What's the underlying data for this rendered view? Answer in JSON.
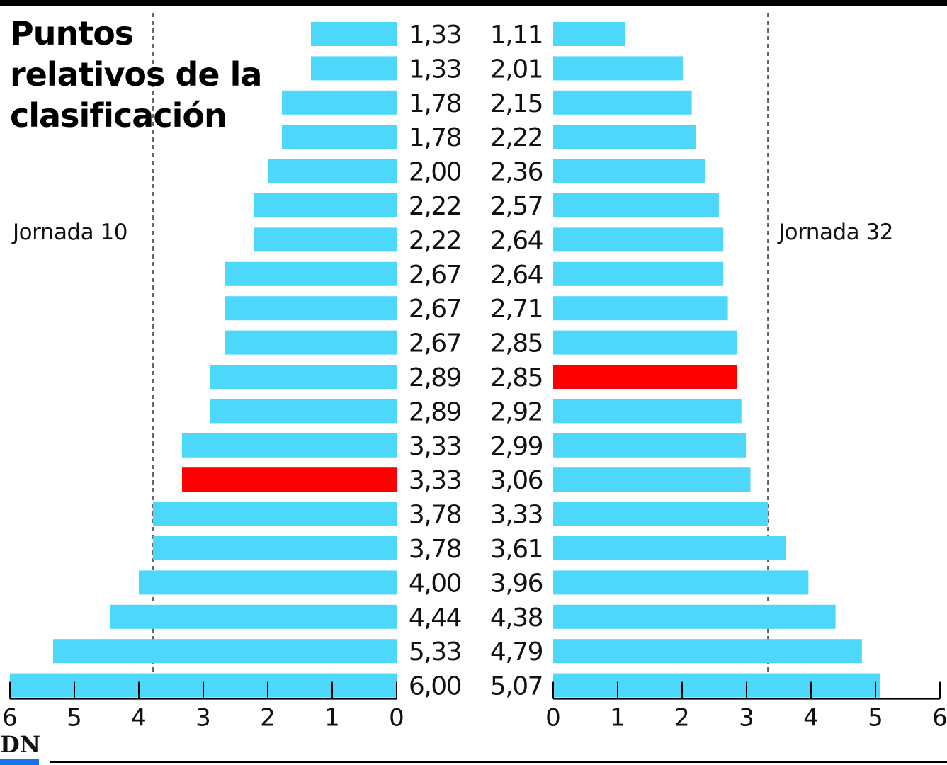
{
  "title": "Puntos relativos de la clasificación",
  "colors": {
    "bar": "#4dd8fb",
    "highlight": "#fe0000",
    "axis": "#000000",
    "text": "#111111",
    "brand": "#1a73e8"
  },
  "brand": {
    "logo": "DN"
  },
  "chart_data": [
    {
      "type": "bar",
      "orientation": "horizontal",
      "direction": "right-to-left",
      "series_label": "Jornada 10",
      "values": [
        1.33,
        1.33,
        1.78,
        1.78,
        2.0,
        2.22,
        2.22,
        2.67,
        2.67,
        2.67,
        2.89,
        2.89,
        3.33,
        3.33,
        3.78,
        3.78,
        4.0,
        4.44,
        5.33,
        6.0
      ],
      "value_labels": [
        "1,33",
        "1,33",
        "1,78",
        "1,78",
        "2,00",
        "2,22",
        "2,22",
        "2,67",
        "2,67",
        "2,67",
        "2,89",
        "2,89",
        "3,33",
        "3,33",
        "3,78",
        "3,78",
        "4,00",
        "4,44",
        "5,33",
        "6,00"
      ],
      "highlight_index": 13,
      "xlim": [
        0,
        6
      ],
      "ticks": [
        "0",
        "1",
        "2",
        "3",
        "4",
        "5",
        "6"
      ],
      "reference_line": 3.78
    },
    {
      "type": "bar",
      "orientation": "horizontal",
      "direction": "left-to-right",
      "series_label": "Jornada 32",
      "values": [
        1.11,
        2.01,
        2.15,
        2.22,
        2.36,
        2.57,
        2.64,
        2.64,
        2.71,
        2.85,
        2.85,
        2.92,
        2.99,
        3.06,
        3.33,
        3.61,
        3.96,
        4.38,
        4.79,
        5.07
      ],
      "value_labels": [
        "1,11",
        "2,01",
        "2,15",
        "2,22",
        "2,36",
        "2,57",
        "2,64",
        "2,64",
        "2,71",
        "2,85",
        "2,85",
        "2,92",
        "2,99",
        "3,06",
        "3,33",
        "3,61",
        "3,96",
        "4,38",
        "4,79",
        "5,07"
      ],
      "highlight_index": 10,
      "xlim": [
        0,
        6
      ],
      "ticks": [
        "0",
        "1",
        "2",
        "3",
        "4",
        "5",
        "6"
      ],
      "reference_line": 3.33
    }
  ]
}
